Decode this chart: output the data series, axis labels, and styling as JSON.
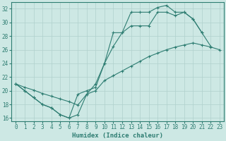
{
  "bg_color": "#cde8e4",
  "grid_color": "#b0d0cc",
  "line_color": "#2e7d72",
  "xlabel": "Humidex (Indice chaleur)",
  "xlim": [
    -0.5,
    23.5
  ],
  "ylim": [
    15.5,
    33.0
  ],
  "yticks": [
    16,
    18,
    20,
    22,
    24,
    26,
    28,
    30,
    32
  ],
  "xticks": [
    0,
    1,
    2,
    3,
    4,
    5,
    6,
    7,
    8,
    9,
    10,
    11,
    12,
    13,
    14,
    15,
    16,
    17,
    18,
    19,
    20,
    21,
    22,
    23
  ],
  "line1_x": [
    0,
    1,
    2,
    3,
    4,
    5,
    6,
    7,
    8,
    9,
    10,
    11,
    12,
    13,
    14,
    15,
    16,
    17,
    18,
    19,
    20,
    21,
    22
  ],
  "line1_y": [
    21.0,
    20.0,
    19.0,
    18.0,
    17.5,
    16.5,
    16.0,
    19.5,
    20.0,
    20.5,
    24.0,
    28.5,
    28.5,
    31.5,
    31.5,
    31.5,
    32.2,
    32.5,
    31.5,
    31.5,
    30.5,
    28.5,
    26.5
  ],
  "line2_x": [
    0,
    1,
    2,
    3,
    4,
    5,
    6,
    7,
    8,
    9,
    10,
    11,
    12,
    13,
    14,
    15,
    16,
    17,
    18,
    19,
    20,
    21
  ],
  "line2_y": [
    21.0,
    20.0,
    19.0,
    18.0,
    17.5,
    16.5,
    16.0,
    16.5,
    19.5,
    21.0,
    24.0,
    26.5,
    28.5,
    29.5,
    29.5,
    29.5,
    31.5,
    31.5,
    31.0,
    31.5,
    30.5,
    28.5
  ],
  "line3_x": [
    0,
    1,
    2,
    3,
    4,
    5,
    6,
    7,
    8,
    9,
    10,
    11,
    12,
    13,
    14,
    15,
    16,
    17,
    18,
    19,
    20,
    21,
    22,
    23
  ],
  "line3_y": [
    21.0,
    20.5,
    20.1,
    19.6,
    19.2,
    18.8,
    18.4,
    17.9,
    19.5,
    20.0,
    21.5,
    22.2,
    22.9,
    23.6,
    24.3,
    25.0,
    25.5,
    26.0,
    26.4,
    26.7,
    27.0,
    26.7,
    26.4,
    26.0
  ],
  "figsize": [
    3.2,
    2.0
  ],
  "dpi": 100,
  "tick_fontsize": 5.5,
  "xlabel_fontsize": 6.5
}
